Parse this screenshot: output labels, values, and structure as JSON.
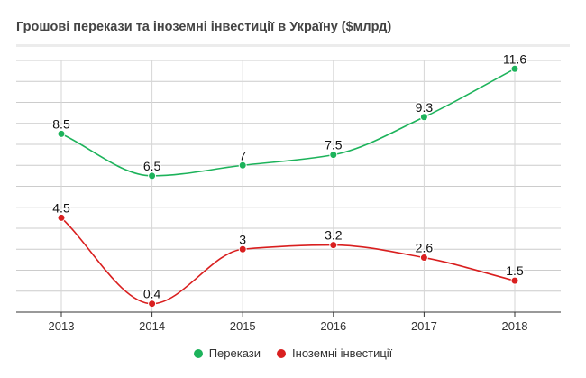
{
  "chart_data": {
    "type": "line",
    "title": "Грошові перекази та іноземні інвестиції в Україну ($млрд)",
    "categories": [
      "2013",
      "2014",
      "2015",
      "2016",
      "2017",
      "2018"
    ],
    "series": [
      {
        "name": "Перекази",
        "color": "#1db35b",
        "values": [
          8.5,
          6.5,
          7,
          7.5,
          9.3,
          11.6
        ],
        "labels": [
          "8.5",
          "6.5",
          "7",
          "7.5",
          "9.3",
          "11.6"
        ]
      },
      {
        "name": "Іноземні інвестиції",
        "color": "#d91f1f",
        "values": [
          4.5,
          0.4,
          3,
          3.2,
          2.6,
          1.5
        ],
        "labels": [
          "4.5",
          "0.4",
          "3",
          "3.2",
          "2.6",
          "1.5"
        ]
      }
    ],
    "ylim": [
      0,
      12
    ],
    "grid": true,
    "smooth": true,
    "legend_position": "bottom-center",
    "show_y_tick_labels": false
  }
}
